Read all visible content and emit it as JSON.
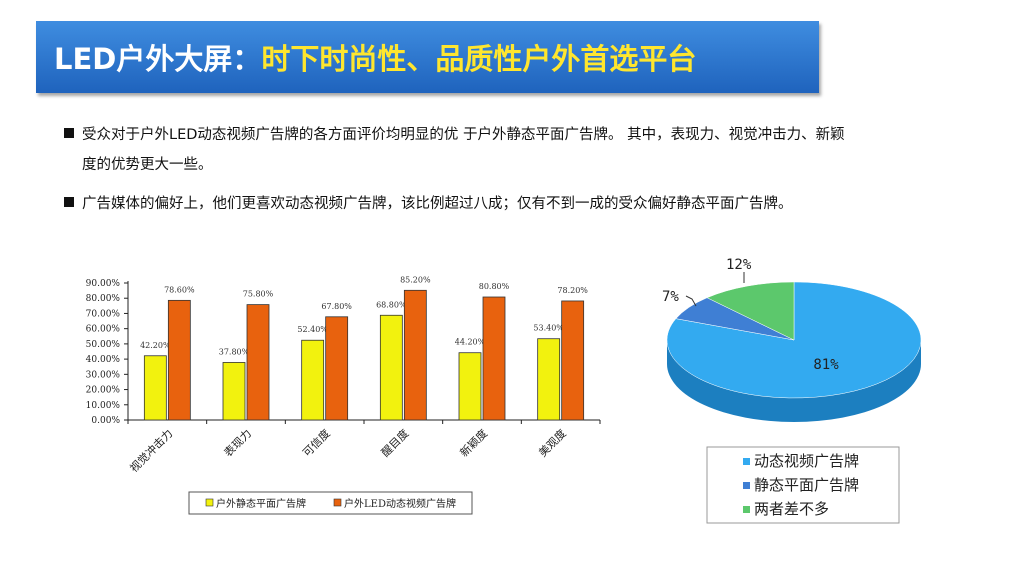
{
  "header": {
    "title_prefix": "LED户外大屏：",
    "title_highlight": "时下时尚性、品质性户外首选平台"
  },
  "bullets": {
    "b1_line1": "受众对于户外LED动态视频广告牌的各方面评价均明显的优 于户外静态平面广告牌。 其中，表现力、视觉冲击力、新颖",
    "b1_line2": "度的优势更大一些。",
    "b2": "广告媒体的偏好上，他们更喜欢动态视频广告牌，该比例超过八成；仅有不到一成的受众偏好静态平面广告牌。"
  },
  "colors": {
    "static_bar": "#f2f20e",
    "led_bar": "#e8620e",
    "pie_dynamic": "#33aaf0",
    "pie_static": "#3f7fd4",
    "pie_same": "#5cc86c",
    "title_bg": "#2f78d0",
    "title_highlight": "#ffe62e"
  },
  "chart_data": [
    {
      "type": "bar",
      "categories": [
        "视觉冲击力",
        "表现力",
        "可信度",
        "醒目度",
        "新颖度",
        "美观度"
      ],
      "series": [
        {
          "name": "户外静态平面广告牌",
          "values": [
            42.2,
            37.8,
            52.4,
            68.8,
            44.2,
            53.4
          ],
          "labels": [
            "42.20%",
            "37.80%",
            "52.40%",
            "68.80%",
            "44.20%",
            "53.40%"
          ]
        },
        {
          "name": "户外LED动态视频广告牌",
          "values": [
            78.6,
            75.8,
            67.8,
            85.2,
            80.8,
            78.2
          ],
          "labels": [
            "78.60%",
            "75.80%",
            "67.80%",
            "85.20%",
            "80.80%",
            "78.20%"
          ]
        }
      ],
      "ylim": [
        0,
        90
      ],
      "yticks": [
        "0.00%",
        "10.00%",
        "20.00%",
        "30.00%",
        "40.00%",
        "50.00%",
        "60.00%",
        "70.00%",
        "80.00%",
        "90.00%"
      ],
      "legend": "bottom"
    },
    {
      "type": "pie",
      "slices": [
        {
          "name": "动态视频广告牌",
          "value": 81,
          "label": "81%"
        },
        {
          "name": "静态平面广告牌",
          "value": 7,
          "label": "7%"
        },
        {
          "name": "两者差不多",
          "value": 12,
          "label": "12%"
        }
      ],
      "legend": "bottom"
    }
  ]
}
